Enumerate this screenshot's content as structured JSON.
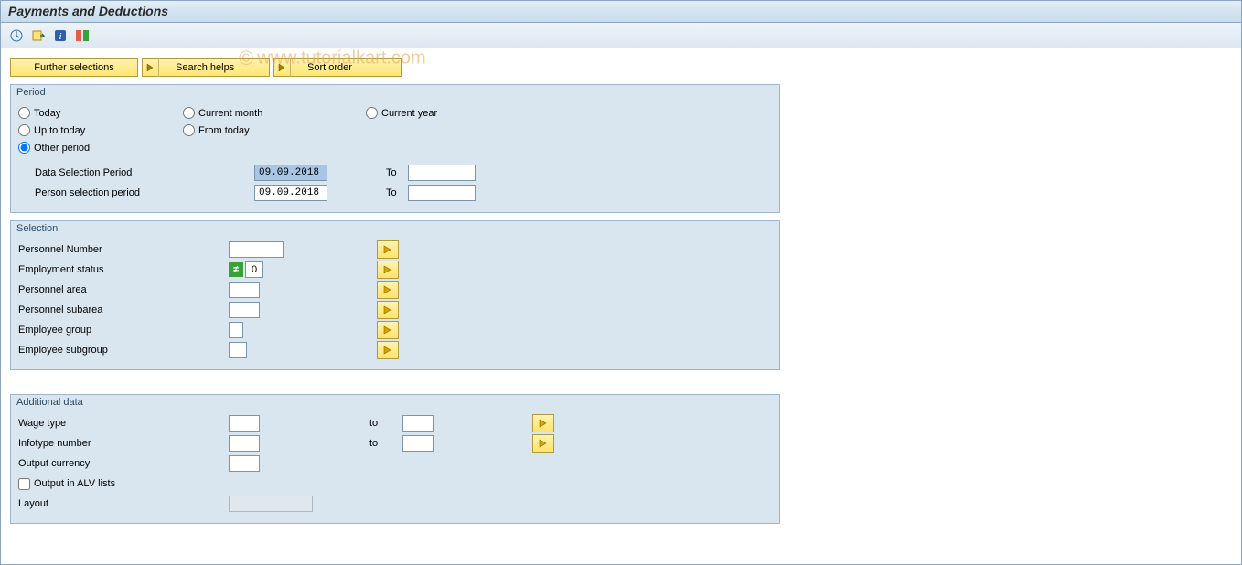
{
  "colors": {
    "panel_bg": "#d9e5ef",
    "panel_border": "#9cb7cd",
    "outer_border": "#8aa5bd",
    "yellow_btn_top": "#fff3b2",
    "yellow_btn_bot": "#ffe671",
    "yellow_btn_border": "#b09a3c",
    "input_border": "#7b95ac",
    "selected_bg": "#a8c5e5",
    "green_badge": "#3aa03a",
    "title_gradient_top": "#e2edf6",
    "title_gradient_bot": "#c6dbec"
  },
  "title": "Payments and Deductions",
  "watermark": "www.tutorialkart.com",
  "watermark_c": "©",
  "toolbar": {
    "execute_icon": "execute",
    "variant_icon": "variant",
    "info_icon": "info",
    "options_icon": "options"
  },
  "tabs": {
    "further": "Further selections",
    "search": "Search helps",
    "sort": "Sort order"
  },
  "period": {
    "title": "Period",
    "radios": {
      "today": "Today",
      "current_month": "Current month",
      "current_year": "Current year",
      "up_to_today": "Up to today",
      "from_today": "From today",
      "other": "Other period"
    },
    "selected": "other",
    "data_sel_label": "Data Selection Period",
    "data_sel_from": "09.09.2018",
    "data_sel_to": "",
    "person_sel_label": "Person selection period",
    "person_sel_from": "09.09.2018",
    "person_sel_to": "",
    "to_label": "To"
  },
  "selection": {
    "title": "Selection",
    "rows": [
      {
        "label": "Personnel Number",
        "value": "",
        "width": "w60",
        "has_multi": true,
        "has_noteq": false
      },
      {
        "label": "Employment status",
        "value": "0",
        "width": "w20",
        "has_multi": true,
        "has_noteq": true
      },
      {
        "label": "Personnel area",
        "value": "",
        "width": "w34",
        "has_multi": true,
        "has_noteq": false
      },
      {
        "label": "Personnel subarea",
        "value": "",
        "width": "w34",
        "has_multi": true,
        "has_noteq": false
      },
      {
        "label": "Employee group",
        "value": "",
        "width": "w16",
        "has_multi": true,
        "has_noteq": false
      },
      {
        "label": "Employee subgroup",
        "value": "",
        "width": "w20",
        "has_multi": true,
        "has_noteq": false
      }
    ],
    "noteq_glyph": "≠"
  },
  "additional": {
    "title": "Additional data",
    "to_label": "to",
    "rows": [
      {
        "label": "Wage type",
        "value": "",
        "to_value": "",
        "width": "w34",
        "has_range": true,
        "has_multi": true
      },
      {
        "label": "Infotype number",
        "value": "",
        "to_value": "",
        "width": "w34",
        "has_range": true,
        "has_multi": true
      },
      {
        "label": "Output currency",
        "value": "",
        "width": "w34",
        "has_range": false,
        "has_multi": false
      }
    ],
    "alv_label": "Output in ALV lists",
    "alv_checked": false,
    "layout_label": "Layout",
    "layout_value": "",
    "layout_disabled": true
  }
}
